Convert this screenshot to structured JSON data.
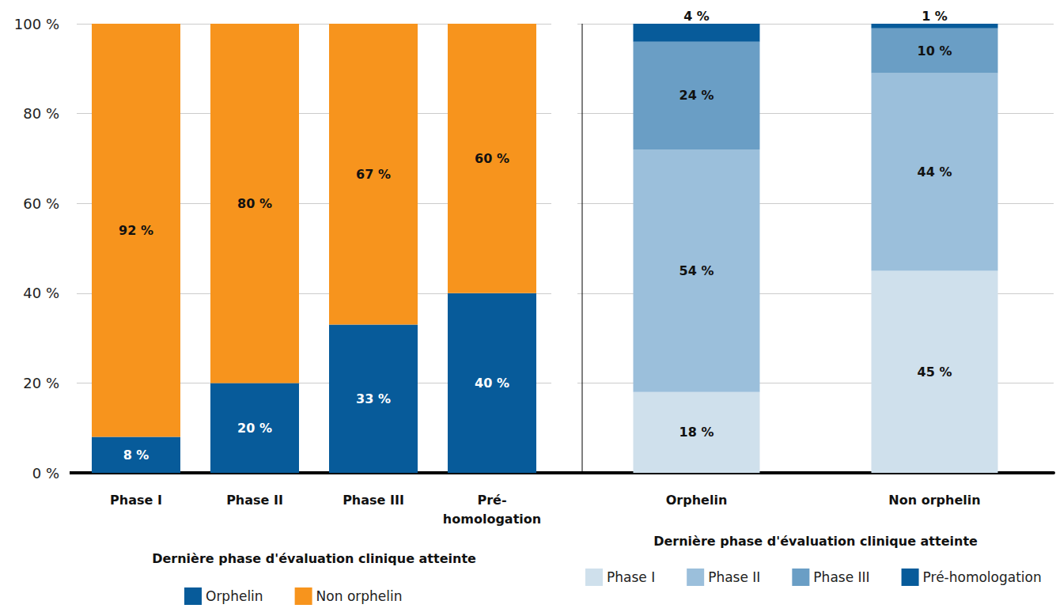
{
  "chart_data": [
    {
      "type": "bar",
      "stacked": true,
      "grid": true,
      "data_labels": true,
      "x_label": "Dernière phase d'évaluation clinique atteinte",
      "categories": [
        "Phase I",
        "Phase II",
        "Phase III",
        "Pré-homologation"
      ],
      "ylim": [
        0,
        100
      ],
      "yticks": [
        {
          "value": 0,
          "label": "0 %"
        },
        {
          "value": 20,
          "label": "20 %"
        },
        {
          "value": 40,
          "label": "40 %"
        },
        {
          "value": 60,
          "label": "60 %"
        },
        {
          "value": 80,
          "label": "80 %"
        },
        {
          "value": 100,
          "label": "100 %"
        }
      ],
      "legend": "bottom",
      "series": [
        {
          "name": "Orphelin",
          "color": "#075b9a",
          "values": [
            8,
            20,
            33,
            40
          ],
          "value_labels": [
            "8 %",
            "20 %",
            "33 %",
            "40 %"
          ]
        },
        {
          "name": "Non orphelin",
          "color": "#f7941d",
          "values": [
            92,
            80,
            67,
            60
          ],
          "value_labels": [
            "92 %",
            "80 %",
            "67 %",
            "60 %"
          ]
        }
      ]
    },
    {
      "type": "bar",
      "stacked": true,
      "grid": true,
      "data_labels": true,
      "tick_labels": "x",
      "x_label": "Dernière phase d'évaluation clinique atteinte",
      "categories": [
        "Orphelin",
        "Non orphelin"
      ],
      "ylim": [
        0,
        100
      ],
      "yticks": [
        0,
        20,
        40,
        60,
        80,
        100
      ],
      "legend": "bottom",
      "series": [
        {
          "name": "Phase I",
          "color": "#cfe0ec",
          "values": [
            18,
            45
          ],
          "value_labels": [
            "18 %",
            "45 %"
          ]
        },
        {
          "name": "Phase II",
          "color": "#9bbfdb",
          "values": [
            54,
            44
          ],
          "value_labels": [
            "54 %",
            "44 %"
          ]
        },
        {
          "name": "Phase III",
          "color": "#6a9ec5",
          "values": [
            24,
            10
          ],
          "value_labels": [
            "24 %",
            "10 %"
          ]
        },
        {
          "name": "Pré-homologation",
          "color": "#075b9a",
          "values": [
            4,
            1
          ],
          "value_labels": [
            "4 %",
            "1 %"
          ]
        }
      ]
    }
  ]
}
